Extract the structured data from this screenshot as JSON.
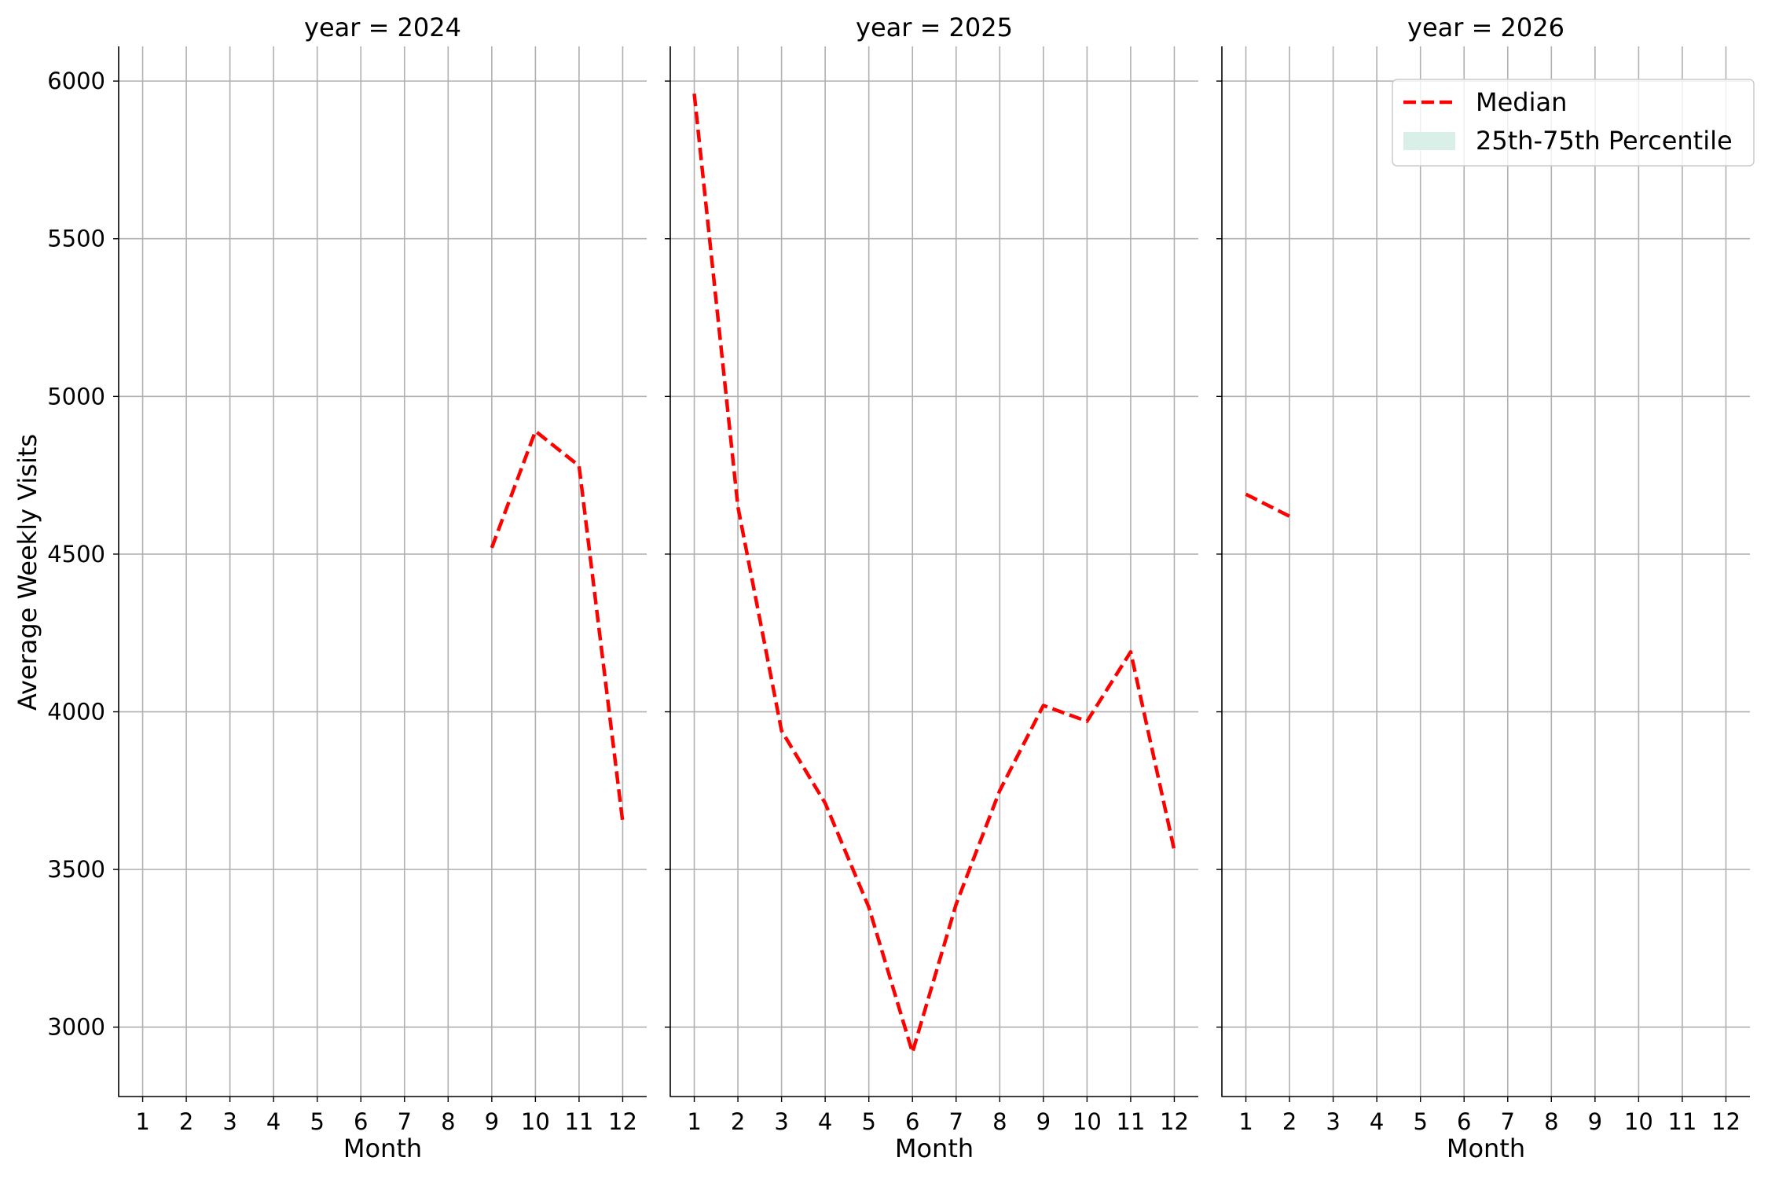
{
  "chart_data": [
    {
      "type": "line",
      "title": "year = 2024",
      "xlabel": "Month",
      "ylabel": "Average Weekly Visits",
      "x": [
        1,
        2,
        3,
        4,
        5,
        6,
        7,
        8,
        9,
        10,
        11,
        12
      ],
      "xlim": [
        0.45,
        12.55
      ],
      "ylim": [
        2780,
        6110
      ],
      "yticks": [
        3000,
        3500,
        4000,
        4500,
        5000,
        5500,
        6000
      ],
      "grid": true,
      "series": [
        {
          "name": "Median",
          "style": "dashed",
          "color": "#ff0000",
          "points": [
            [
              9,
              4520
            ],
            [
              10,
              4890
            ],
            [
              11,
              4780
            ],
            [
              12,
              3650
            ]
          ]
        }
      ]
    },
    {
      "type": "line",
      "title": "year = 2025",
      "xlabel": "Month",
      "ylabel": "",
      "x": [
        1,
        2,
        3,
        4,
        5,
        6,
        7,
        8,
        9,
        10,
        11,
        12
      ],
      "xlim": [
        0.45,
        12.55
      ],
      "ylim": [
        2780,
        6110
      ],
      "yticks": [
        3000,
        3500,
        4000,
        4500,
        5000,
        5500,
        6000
      ],
      "grid": true,
      "series": [
        {
          "name": "Median",
          "style": "dashed",
          "color": "#ff0000",
          "points": [
            [
              1,
              5960
            ],
            [
              2,
              4650
            ],
            [
              3,
              3940
            ],
            [
              4,
              3710
            ],
            [
              5,
              3380
            ],
            [
              6,
              2920
            ],
            [
              7,
              3390
            ],
            [
              8,
              3750
            ],
            [
              9,
              4020
            ],
            [
              10,
              3970
            ],
            [
              11,
              4190
            ],
            [
              12,
              3560
            ]
          ]
        }
      ]
    },
    {
      "type": "line",
      "title": "year = 2026",
      "xlabel": "Month",
      "ylabel": "",
      "x": [
        1,
        2,
        3,
        4,
        5,
        6,
        7,
        8,
        9,
        10,
        11,
        12
      ],
      "xlim": [
        0.45,
        12.55
      ],
      "ylim": [
        2780,
        6110
      ],
      "yticks": [
        3000,
        3500,
        4000,
        4500,
        5000,
        5500,
        6000
      ],
      "grid": true,
      "series": [
        {
          "name": "Median",
          "style": "dashed",
          "color": "#ff0000",
          "points": [
            [
              1,
              4690
            ],
            [
              2,
              4620
            ]
          ]
        }
      ]
    }
  ],
  "legend": {
    "placement": "top-right",
    "entries": [
      {
        "label": "Median",
        "kind": "dashed-line",
        "color": "#ff0000"
      },
      {
        "label": "25th-75th Percentile",
        "kind": "band",
        "color": "#d9efe8"
      }
    ]
  },
  "colors": {
    "grid": "#b0b0b0",
    "axis": "#000000",
    "median": "#ff0000",
    "band": "#d9efe8"
  }
}
